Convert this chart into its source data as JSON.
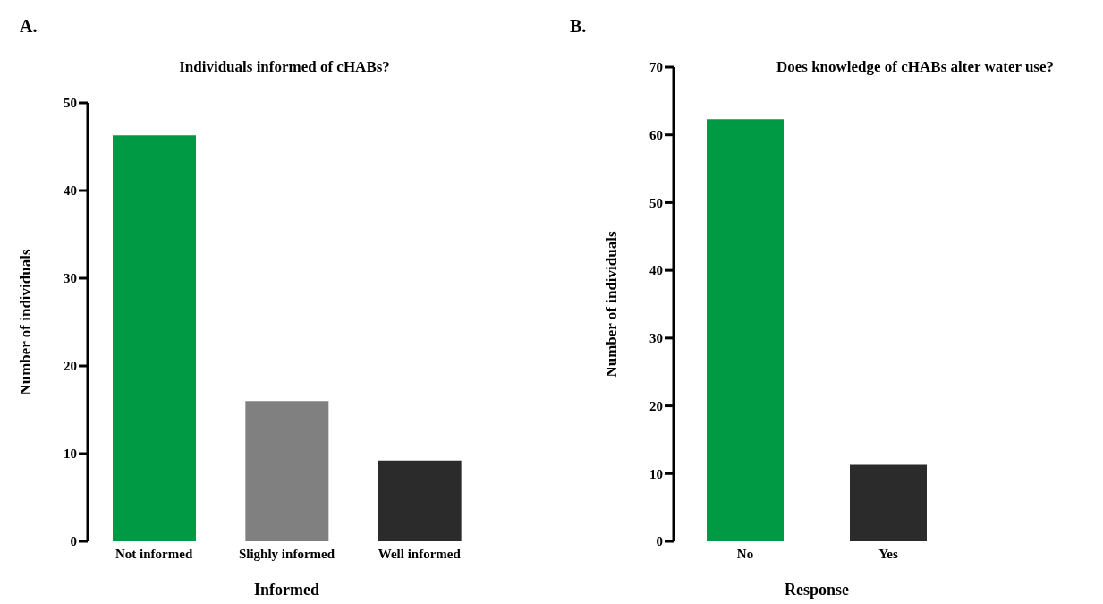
{
  "chart_data": [
    {
      "type": "bar",
      "title": "Individuals informed of cHABs?",
      "xlabel": "Informed",
      "ylabel": "Number of individuals",
      "annotations": [
        "A."
      ],
      "categories": [
        "Not informed",
        "Slighly informed",
        "Well informed"
      ],
      "values": [
        46.3,
        16,
        9.2
      ],
      "colors": [
        "#009a44",
        "#808080",
        "#2b2b2b"
      ],
      "ylim": [
        0,
        50
      ],
      "yticks": [
        0,
        10,
        20,
        30,
        40,
        50
      ],
      "grid": false,
      "legend": false
    },
    {
      "type": "bar",
      "title": "Does knowledge of cHABs alter water use?",
      "xlabel": "Response",
      "ylabel": "Number of individuals",
      "annotations": [
        "B."
      ],
      "categories": [
        "No",
        "Yes"
      ],
      "values": [
        62.3,
        11.3
      ],
      "colors": [
        "#009a44",
        "#2b2b2b"
      ],
      "ylim": [
        0,
        70
      ],
      "yticks": [
        0,
        10,
        20,
        30,
        40,
        50,
        60,
        70
      ],
      "grid": false,
      "legend": false
    }
  ]
}
